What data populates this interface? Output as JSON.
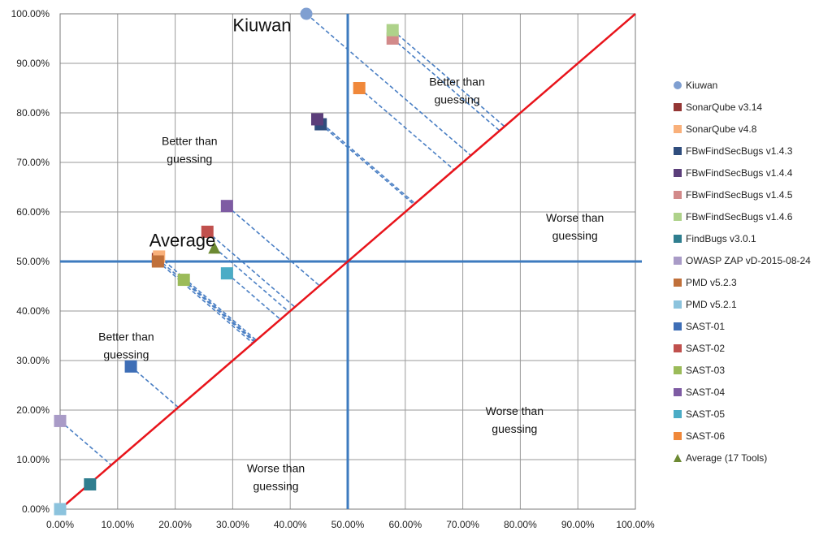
{
  "chart_data": {
    "type": "scatter",
    "xlim": [
      0,
      1
    ],
    "ylim": [
      0,
      1
    ],
    "grid": true,
    "legend_position": "right",
    "x_ticks": [
      "0.00%",
      "10.00%",
      "20.00%",
      "30.00%",
      "40.00%",
      "50.00%",
      "60.00%",
      "70.00%",
      "80.00%",
      "90.00%",
      "100.00%"
    ],
    "y_ticks": [
      "0.00%",
      "10.00%",
      "20.00%",
      "30.00%",
      "40.00%",
      "50.00%",
      "60.00%",
      "70.00%",
      "80.00%",
      "90.00%",
      "100.00%"
    ],
    "reference_lines": {
      "diagonal_color": "#e8141b",
      "threshold_x": 0.5,
      "threshold_y": 0.5,
      "threshold_color": "#3e7bbf"
    },
    "series": [
      {
        "name": "Kiuwan",
        "x": 0.428,
        "y": 1.0,
        "color": "#7f9fd1",
        "marker": "circle"
      },
      {
        "name": "SonarQube v3.14",
        "x": 0.17,
        "y": 0.505,
        "color": "#943634",
        "marker": "square"
      },
      {
        "name": "SonarQube v4.8",
        "x": 0.172,
        "y": 0.51,
        "color": "#f9b07a",
        "marker": "square"
      },
      {
        "name": "FBwFindSecBugs v1.4.3",
        "x": 0.453,
        "y": 0.777,
        "color": "#2f4d7d",
        "marker": "square"
      },
      {
        "name": "FBwFindSecBugs v1.4.4",
        "x": 0.447,
        "y": 0.787,
        "color": "#5b3e7a",
        "marker": "square"
      },
      {
        "name": "FBwFindSecBugs v1.4.5",
        "x": 0.578,
        "y": 0.95,
        "color": "#d28a8a",
        "marker": "square"
      },
      {
        "name": "FBwFindSecBugs v1.4.6",
        "x": 0.578,
        "y": 0.967,
        "color": "#aed28a",
        "marker": "square"
      },
      {
        "name": "FindBugs v3.0.1",
        "x": 0.052,
        "y": 0.05,
        "color": "#2f7e8f",
        "marker": "square"
      },
      {
        "name": "OWASP ZAP vD-2015-08-24",
        "x": 0.0,
        "y": 0.178,
        "color": "#a99bc7",
        "marker": "square"
      },
      {
        "name": "PMD v5.2.3",
        "x": 0.17,
        "y": 0.5,
        "color": "#c0703a",
        "marker": "square"
      },
      {
        "name": "PMD v5.2.1",
        "x": 0.0,
        "y": 0.0,
        "color": "#8cc3dd",
        "marker": "square"
      },
      {
        "name": "SAST-01",
        "x": 0.123,
        "y": 0.288,
        "color": "#3e6eb6",
        "marker": "square"
      },
      {
        "name": "SAST-02",
        "x": 0.256,
        "y": 0.56,
        "color": "#c0504d",
        "marker": "square"
      },
      {
        "name": "SAST-03",
        "x": 0.215,
        "y": 0.463,
        "color": "#9bbb59",
        "marker": "square"
      },
      {
        "name": "SAST-04",
        "x": 0.29,
        "y": 0.612,
        "color": "#7e5ba3",
        "marker": "square"
      },
      {
        "name": "SAST-05",
        "x": 0.29,
        "y": 0.476,
        "color": "#4bacc6",
        "marker": "square"
      },
      {
        "name": "SAST-06",
        "x": 0.52,
        "y": 0.85,
        "color": "#f0883a",
        "marker": "square"
      },
      {
        "name": "Average (17 Tools)",
        "x": 0.268,
        "y": 0.528,
        "color": "#6d8a33",
        "marker": "triangle"
      }
    ],
    "annotations": [
      {
        "text": "Kiuwan",
        "x": 0.3,
        "y": 0.965,
        "style": "big"
      },
      {
        "text": "Average",
        "x": 0.155,
        "y": 0.53,
        "style": "big"
      },
      {
        "lines": [
          "Better than",
          "guessing"
        ],
        "x": 0.225,
        "y": 0.735,
        "style": "region"
      },
      {
        "lines": [
          "Better than",
          "guessing"
        ],
        "x": 0.69,
        "y": 0.855,
        "style": "region"
      },
      {
        "lines": [
          "Better than",
          "guessing"
        ],
        "x": 0.115,
        "y": 0.34,
        "style": "region"
      },
      {
        "lines": [
          "Worse than",
          "guessing"
        ],
        "x": 0.895,
        "y": 0.58,
        "style": "region"
      },
      {
        "lines": [
          "Worse than",
          "guessing"
        ],
        "x": 0.79,
        "y": 0.19,
        "style": "region"
      },
      {
        "lines": [
          "Worse than",
          "guessing"
        ],
        "x": 0.375,
        "y": 0.075,
        "style": "region"
      }
    ]
  }
}
